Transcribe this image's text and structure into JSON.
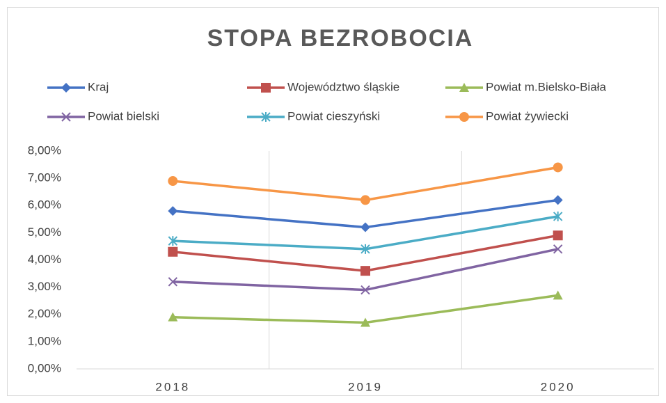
{
  "chart_data": {
    "type": "line",
    "title": "STOPA BEZROBOCIA",
    "categories": [
      "2018",
      "2019",
      "2020"
    ],
    "series": [
      {
        "name": "Kraj",
        "color": "#4472c4",
        "marker": "diamond",
        "values": [
          5.8,
          5.2,
          6.2
        ]
      },
      {
        "name": "Województwo śląskie",
        "color": "#c0504d",
        "marker": "square",
        "values": [
          4.3,
          3.6,
          4.9
        ]
      },
      {
        "name": "Powiat m.Bielsko-Biała",
        "color": "#9bbb59",
        "marker": "triangle",
        "values": [
          1.9,
          1.7,
          2.7
        ]
      },
      {
        "name": "Powiat bielski",
        "color": "#8064a2",
        "marker": "x",
        "values": [
          3.2,
          2.9,
          4.4
        ]
      },
      {
        "name": "Powiat cieszyński",
        "color": "#4bacc6",
        "marker": "star",
        "values": [
          4.7,
          4.4,
          5.6
        ]
      },
      {
        "name": "Powiat żywiecki",
        "color": "#f79646",
        "marker": "circle",
        "values": [
          6.9,
          6.2,
          7.4
        ]
      }
    ],
    "ylim": [
      0,
      8
    ],
    "yticks": [
      {
        "value": 0,
        "label": "0,00%"
      },
      {
        "value": 1,
        "label": "1,00%"
      },
      {
        "value": 2,
        "label": "2,00%"
      },
      {
        "value": 3,
        "label": "3,00%"
      },
      {
        "value": 4,
        "label": "4,00%"
      },
      {
        "value": 5,
        "label": "5,00%"
      },
      {
        "value": 6,
        "label": "6,00%"
      },
      {
        "value": 7,
        "label": "7,00%"
      },
      {
        "value": 8,
        "label": "8,00%"
      }
    ],
    "grid": "x",
    "legend": "top"
  }
}
